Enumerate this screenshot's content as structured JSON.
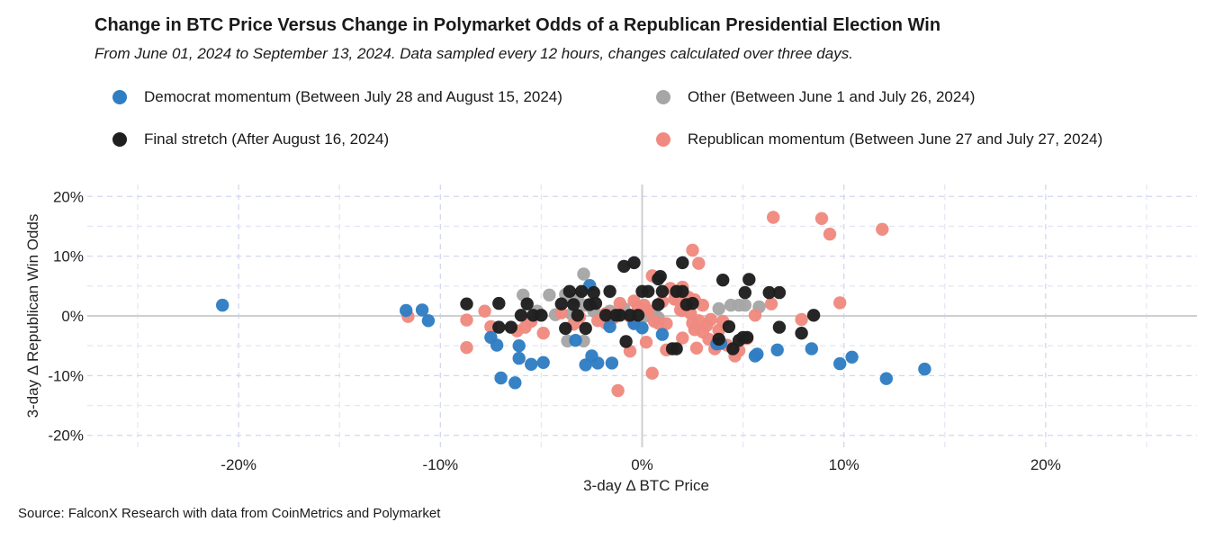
{
  "chart_data": {
    "type": "scatter",
    "title": "Change in BTC Price Versus Change in Polymarket Odds of a Republican Presidential Election Win",
    "subtitle": "From June 01, 2024 to September 13, 2024. Data sampled every 12 hours, changes calculated over three days.",
    "xlabel": "3-day Δ BTC Price",
    "ylabel": "3-day Δ Republican Win Odds",
    "xlim": [
      -27.5,
      27.5
    ],
    "ylim": [
      -22,
      22
    ],
    "xticks": [
      -20,
      -10,
      0,
      10,
      20
    ],
    "xtick_labels": [
      "-20%",
      "-10%",
      "0%",
      "10%",
      "20%"
    ],
    "yticks": [
      -20,
      -10,
      0,
      10,
      20
    ],
    "ytick_labels": [
      "-20%",
      "-10%",
      "0%",
      "10%",
      "20%"
    ],
    "grid": true,
    "legend_position": "top",
    "source": "Source: FalconX Research with data from CoinMetrics and Polymarket",
    "series": [
      {
        "name": "Other (Between June 1 and July 26, 2024)",
        "color": "#a6a6a6",
        "points": [
          [
            -2.9,
            7.0
          ],
          [
            -3.2,
            3.2
          ],
          [
            -3.8,
            3.6
          ],
          [
            -4.6,
            3.5
          ],
          [
            -5.9,
            3.5
          ],
          [
            -3.4,
            2.5
          ],
          [
            -2.8,
            1.8
          ],
          [
            -2.4,
            0.8
          ],
          [
            -2.0,
            0.0
          ],
          [
            -1.4,
            0.1
          ],
          [
            0.2,
            0.0
          ],
          [
            0.6,
            0.4
          ],
          [
            0.8,
            -0.3
          ],
          [
            -0.9,
            1.2
          ],
          [
            -1.6,
            0.8
          ],
          [
            3.8,
            1.2
          ],
          [
            4.4,
            1.8
          ],
          [
            4.8,
            1.8
          ],
          [
            5.1,
            1.8
          ],
          [
            5.8,
            1.5
          ],
          [
            -2.9,
            -4.2
          ],
          [
            -3.7,
            -4.2
          ],
          [
            -4.3,
            0.2
          ],
          [
            -5.2,
            0.8
          ],
          [
            -3.5,
            0.3
          ]
        ]
      },
      {
        "name": "Republican momentum (Between June 27 and July 27, 2024)",
        "color": "#f08a80",
        "points": [
          [
            6.5,
            16.5
          ],
          [
            8.9,
            16.3
          ],
          [
            9.3,
            13.7
          ],
          [
            11.9,
            14.5
          ],
          [
            2.5,
            11.0
          ],
          [
            2.8,
            8.8
          ],
          [
            9.8,
            2.2
          ],
          [
            7.9,
            -0.6
          ],
          [
            6.4,
            2.0
          ],
          [
            5.6,
            0.1
          ],
          [
            -11.6,
            -0.1
          ],
          [
            -8.7,
            -0.7
          ],
          [
            -7.8,
            0.8
          ],
          [
            -8.7,
            -5.3
          ],
          [
            -5.8,
            -1.9
          ],
          [
            -4.9,
            -2.9
          ],
          [
            -1.2,
            -12.5
          ],
          [
            0.5,
            -9.6
          ],
          [
            -0.6,
            -5.9
          ],
          [
            0.2,
            -4.4
          ],
          [
            1.2,
            -5.7
          ],
          [
            2.7,
            -5.4
          ],
          [
            3.6,
            -5.5
          ],
          [
            4.2,
            -4.9
          ],
          [
            4.6,
            -6.7
          ],
          [
            5.2,
            -3.8
          ],
          [
            0.5,
            6.7
          ],
          [
            1.4,
            4.6
          ],
          [
            2.0,
            4.8
          ],
          [
            2.3,
            3.1
          ],
          [
            2.6,
            2.7
          ],
          [
            3.0,
            1.8
          ],
          [
            1.8,
            2.6
          ],
          [
            1.0,
            2.4
          ],
          [
            1.6,
            2.8
          ],
          [
            2.0,
            0.9
          ],
          [
            2.4,
            0.4
          ],
          [
            2.8,
            -0.8
          ],
          [
            3.2,
            -1.6
          ],
          [
            3.4,
            -0.6
          ],
          [
            2.6,
            -2.3
          ],
          [
            3.0,
            -2.7
          ],
          [
            2.0,
            -3.7
          ],
          [
            1.2,
            -1.3
          ],
          [
            0.6,
            -0.9
          ],
          [
            -0.4,
            -1.2
          ],
          [
            -0.4,
            2.5
          ],
          [
            -0.2,
            1.5
          ],
          [
            0.1,
            1.8
          ],
          [
            0.8,
            -1.2
          ],
          [
            -1.1,
            2.1
          ],
          [
            -1.8,
            0.4
          ],
          [
            -2.2,
            -0.8
          ],
          [
            -3.4,
            -1.4
          ],
          [
            -4.0,
            0.5
          ],
          [
            -3.1,
            -0.2
          ],
          [
            -1.4,
            -0.3
          ],
          [
            -0.6,
            -0.1
          ],
          [
            0.3,
            0.9
          ],
          [
            1.9,
            1.0
          ],
          [
            2.5,
            -1.2
          ],
          [
            3.8,
            -2.4
          ],
          [
            4.0,
            -0.9
          ],
          [
            4.8,
            -5.8
          ],
          [
            3.3,
            -3.9
          ],
          [
            -1.8,
            -1.2
          ],
          [
            -5.5,
            -0.9
          ],
          [
            -6.2,
            -2.5
          ],
          [
            -7.5,
            -1.8
          ]
        ]
      },
      {
        "name": "Democrat momentum (Between July 28 and August 15, 2024)",
        "color": "#2f7ec3",
        "points": [
          [
            -20.8,
            1.8
          ],
          [
            -11.7,
            0.9
          ],
          [
            -10.9,
            1.0
          ],
          [
            -10.6,
            -0.8
          ],
          [
            -7.5,
            -3.6
          ],
          [
            -7.2,
            -4.9
          ],
          [
            -7.0,
            -10.4
          ],
          [
            -6.3,
            -11.2
          ],
          [
            -6.1,
            -5.0
          ],
          [
            -6.1,
            -7.1
          ],
          [
            -5.5,
            -8.1
          ],
          [
            -4.9,
            -7.8
          ],
          [
            -3.3,
            -4.1
          ],
          [
            -2.8,
            -8.2
          ],
          [
            -2.5,
            -6.7
          ],
          [
            -2.2,
            -7.9
          ],
          [
            -1.5,
            -7.9
          ],
          [
            -2.6,
            5.1
          ],
          [
            -1.6,
            -1.8
          ],
          [
            -0.4,
            -1.3
          ],
          [
            0.0,
            -2.0
          ],
          [
            1.0,
            -3.1
          ],
          [
            3.7,
            -4.7
          ],
          [
            3.9,
            -4.6
          ],
          [
            5.6,
            -6.7
          ],
          [
            5.7,
            -6.4
          ],
          [
            6.7,
            -5.7
          ],
          [
            8.4,
            -5.5
          ],
          [
            9.8,
            -8.0
          ],
          [
            10.4,
            -6.9
          ],
          [
            12.1,
            -10.5
          ],
          [
            14.0,
            -8.9
          ]
        ]
      },
      {
        "name": "Final stretch (After August 16, 2024)",
        "color": "#1f1f1f",
        "points": [
          [
            -0.9,
            8.3
          ],
          [
            -0.4,
            8.9
          ],
          [
            0.8,
            6.2
          ],
          [
            0.9,
            6.6
          ],
          [
            2.0,
            8.9
          ],
          [
            4.0,
            6.0
          ],
          [
            5.3,
            6.1
          ],
          [
            -8.7,
            2.0
          ],
          [
            -7.1,
            2.1
          ],
          [
            -7.1,
            -1.9
          ],
          [
            -6.5,
            -1.9
          ],
          [
            -6.0,
            0.1
          ],
          [
            -5.7,
            2.0
          ],
          [
            -5.4,
            0.1
          ],
          [
            -5.0,
            0.1
          ],
          [
            -4.0,
            2.0
          ],
          [
            -3.8,
            -2.1
          ],
          [
            -3.6,
            4.1
          ],
          [
            -3.4,
            1.9
          ],
          [
            -3.2,
            0.1
          ],
          [
            -3.0,
            4.1
          ],
          [
            -2.8,
            -2.1
          ],
          [
            -2.6,
            1.9
          ],
          [
            -2.4,
            3.9
          ],
          [
            -2.3,
            2.1
          ],
          [
            -1.8,
            0.1
          ],
          [
            -1.6,
            4.1
          ],
          [
            -1.3,
            0.1
          ],
          [
            -1.1,
            0.1
          ],
          [
            -0.8,
            -4.3
          ],
          [
            -0.6,
            0.1
          ],
          [
            -0.2,
            0.1
          ],
          [
            0.0,
            4.1
          ],
          [
            0.3,
            4.1
          ],
          [
            0.8,
            1.9
          ],
          [
            1.0,
            4.1
          ],
          [
            1.5,
            -5.5
          ],
          [
            1.7,
            -5.5
          ],
          [
            1.7,
            4.1
          ],
          [
            2.0,
            4.1
          ],
          [
            2.2,
            1.9
          ],
          [
            2.5,
            2.1
          ],
          [
            3.8,
            -3.9
          ],
          [
            4.3,
            -1.8
          ],
          [
            4.5,
            -5.5
          ],
          [
            4.8,
            -4.1
          ],
          [
            5.0,
            -3.6
          ],
          [
            5.2,
            -3.6
          ],
          [
            5.1,
            3.9
          ],
          [
            6.3,
            3.9
          ],
          [
            6.8,
            3.9
          ],
          [
            6.8,
            -1.9
          ],
          [
            7.9,
            -2.9
          ],
          [
            8.5,
            0.1
          ]
        ]
      }
    ]
  }
}
